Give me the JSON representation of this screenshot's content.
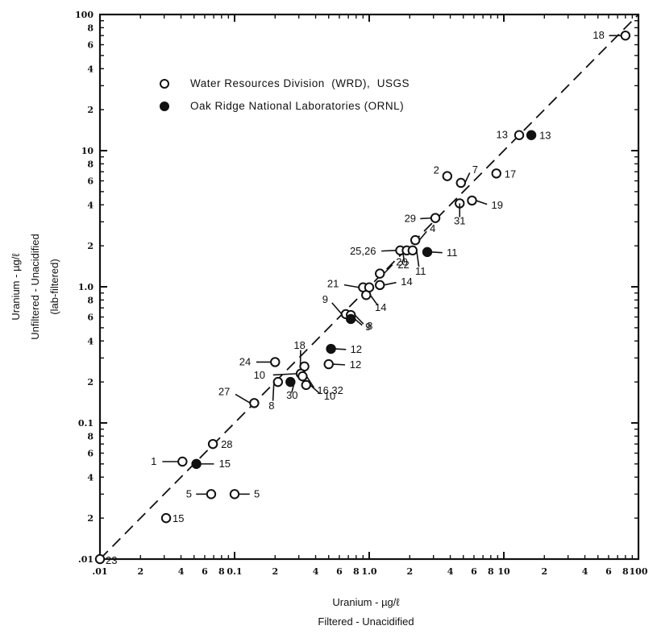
{
  "chart_data": {
    "type": "scatter",
    "x_scale": "log",
    "y_scale": "log",
    "xlim": [
      0.01,
      100
    ],
    "ylim": [
      0.01,
      100
    ],
    "reference_line": "1:1 dashed",
    "xlabel": [
      "Uranium - µg/ℓ",
      "Filtered - Unacidified"
    ],
    "ylabel": [
      "Uranium - µg/ℓ",
      "Unfiltered - Unacidified",
      "(lab-filtered)"
    ],
    "x_major_ticks": [
      {
        "v": 0.01,
        "t": ".01"
      },
      {
        "v": 0.1,
        "t": "0.1"
      },
      {
        "v": 1,
        "t": "1.0"
      },
      {
        "v": 10,
        "t": "10"
      },
      {
        "v": 100,
        "t": "100"
      }
    ],
    "y_major_ticks": [
      {
        "v": 0.01,
        "t": ".01"
      },
      {
        "v": 0.1,
        "t": "0.1"
      },
      {
        "v": 1,
        "t": "1.0"
      },
      {
        "v": 10,
        "t": "10"
      },
      {
        "v": 100,
        "t": "100"
      }
    ],
    "minor_tick_labels": [
      "2",
      "4",
      "6",
      "8"
    ],
    "legend": [
      {
        "name": "Water Resources Division  (WRD),  USGS",
        "marker": "open"
      },
      {
        "name": "Oak Ridge National Laboratories (ORNL)",
        "marker": "filled"
      }
    ],
    "legend_position": "top-left",
    "series": [
      {
        "name": "Water Resources Division  (WRD),  USGS",
        "marker": "open",
        "points": [
          {
            "x": 80,
            "y": 70,
            "label": "18"
          },
          {
            "x": 13,
            "y": 13,
            "label": "13"
          },
          {
            "x": 3.8,
            "y": 6.5,
            "label": "2"
          },
          {
            "x": 4.8,
            "y": 5.8,
            "label": "7"
          },
          {
            "x": 8.8,
            "y": 6.8,
            "label": "17"
          },
          {
            "x": 4.7,
            "y": 4.1,
            "label": "31"
          },
          {
            "x": 5.8,
            "y": 4.3,
            "label": "19"
          },
          {
            "x": 3.1,
            "y": 3.2,
            "label": "29"
          },
          {
            "x": 2.2,
            "y": 2.2,
            "label": "4"
          },
          {
            "x": 1.7,
            "y": 1.85,
            "label": "25,26"
          },
          {
            "x": 1.9,
            "y": 1.85,
            "label": "22"
          },
          {
            "x": 2.1,
            "y": 1.85,
            "label": "11"
          },
          {
            "x": 1.2,
            "y": 1.25,
            "label": "20"
          },
          {
            "x": 1.2,
            "y": 1.03,
            "label": "14"
          },
          {
            "x": 0.9,
            "y": 0.99,
            "label": "21"
          },
          {
            "x": 0.95,
            "y": 0.87,
            "label": "14"
          },
          {
            "x": 1.0,
            "y": 0.99,
            "label": ""
          },
          {
            "x": 0.67,
            "y": 0.63,
            "label": "9"
          },
          {
            "x": 0.73,
            "y": 0.62,
            "label": "8"
          },
          {
            "x": 0.2,
            "y": 0.28,
            "label": "24"
          },
          {
            "x": 0.5,
            "y": 0.27,
            "label": "12"
          },
          {
            "x": 0.33,
            "y": 0.26,
            "label": "18"
          },
          {
            "x": 0.31,
            "y": 0.23,
            "label": "10"
          },
          {
            "x": 0.32,
            "y": 0.22,
            "label": "16,32"
          },
          {
            "x": 0.21,
            "y": 0.2,
            "label": "8"
          },
          {
            "x": 0.34,
            "y": 0.19,
            "label": "10"
          },
          {
            "x": 0.14,
            "y": 0.14,
            "label": "27"
          },
          {
            "x": 0.069,
            "y": 0.07,
            "label": "28"
          },
          {
            "x": 0.041,
            "y": 0.052,
            "label": "1"
          },
          {
            "x": 0.067,
            "y": 0.03,
            "label": "5"
          },
          {
            "x": 0.1,
            "y": 0.03,
            "label": "5"
          },
          {
            "x": 0.031,
            "y": 0.02,
            "label": "15"
          },
          {
            "x": 0.01,
            "y": 0.01,
            "label": "23"
          }
        ]
      },
      {
        "name": "Oak Ridge National Laboratories (ORNL)",
        "marker": "filled",
        "points": [
          {
            "x": 16,
            "y": 13,
            "label": "13"
          },
          {
            "x": 2.7,
            "y": 1.8,
            "label": "11"
          },
          {
            "x": 0.73,
            "y": 0.58,
            "label": "9"
          },
          {
            "x": 0.52,
            "y": 0.35,
            "label": "12"
          },
          {
            "x": 0.052,
            "y": 0.05,
            "label": "15"
          },
          {
            "x": 0.26,
            "y": 0.2,
            "label": "30"
          }
        ]
      }
    ]
  }
}
